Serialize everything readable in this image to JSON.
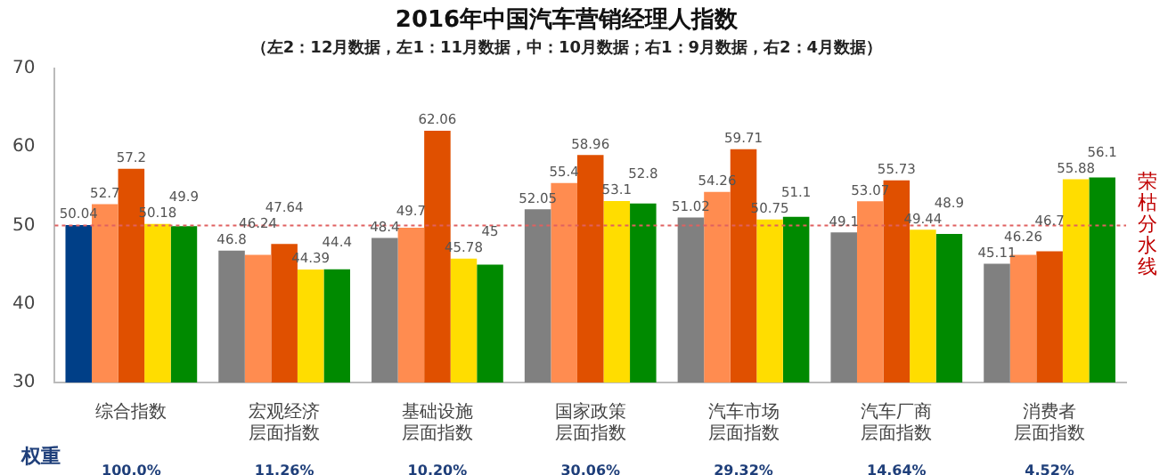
{
  "chart_data": {
    "type": "bar",
    "title": "2016年中国汽车营销经理人指数",
    "subtitle": "（左2：12月数据，左1：11月数据，中：10月数据；右1：9月数据，右2：4月数据）",
    "categories": [
      "综合指数",
      "宏观经济层面指数",
      "基础设施层面指数",
      "国家政策层面指数",
      "汽车市场层面指数",
      "汽车厂商层面指数",
      "消费者层面指数"
    ],
    "series": [
      {
        "colors": [
          "#003f87",
          "#808080",
          "#808080",
          "#808080",
          "#808080",
          "#808080",
          "#808080"
        ],
        "values": [
          50.04,
          46.8,
          48.4,
          52.05,
          51.02,
          49.1,
          45.11
        ]
      },
      {
        "color": "#ff8c50",
        "values": [
          52.7,
          46.24,
          49.7,
          55.4,
          54.26,
          53.07,
          46.26
        ]
      },
      {
        "color": "#e05000",
        "values": [
          57.2,
          47.64,
          62.06,
          58.96,
          59.71,
          55.73,
          46.7
        ]
      },
      {
        "color": "#ffdd00",
        "values": [
          50.18,
          44.39,
          45.78,
          53.1,
          50.75,
          49.44,
          55.88
        ]
      },
      {
        "color": "#008a00",
        "values": [
          49.9,
          44.4,
          45,
          52.8,
          51.1,
          48.9,
          56.1
        ]
      }
    ],
    "ylim": [
      30,
      70
    ],
    "yticks": [
      30,
      40,
      50,
      60,
      70
    ],
    "grid": false,
    "legend": false,
    "data_labels": true,
    "ref_lines": [
      {
        "axis": "y",
        "value": 50,
        "label": "荣枯分水线",
        "color": "#e06060",
        "line_style": "dotted"
      }
    ],
    "annotations": [
      "权重",
      "100.0%",
      "11.26%",
      "10.20%",
      "30.06%",
      "29.32%",
      "14.64%",
      "4.52%"
    ]
  }
}
